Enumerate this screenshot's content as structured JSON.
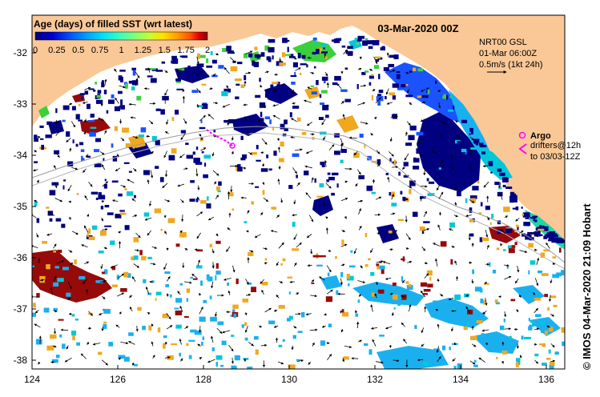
{
  "map": {
    "date_title": "03-Mar-2020 00Z",
    "legend_title": "Age (days) of filled SST (wrt latest)",
    "legend_ticks": [
      "0",
      "0.25",
      "0.5",
      "0.75",
      "1",
      "1.25",
      "1.5",
      "1.75",
      "2"
    ],
    "legend_colors": [
      "#00007f",
      "#0000d0",
      "#0050ff",
      "#00a0ff",
      "#00e4f8",
      "#40ffb8",
      "#80ff78",
      "#c0ff38",
      "#ffe000",
      "#ffa000",
      "#ff5000",
      "#e00000",
      "#8b0000"
    ],
    "y_ticks": [
      "-32",
      "-33",
      "-34",
      "-35",
      "-36",
      "-37",
      "-38"
    ],
    "x_ticks": [
      "124",
      "126",
      "128",
      "130",
      "132",
      "134",
      "136"
    ],
    "current_label_1": "NRT00 GSL",
    "current_label_2": "01-Mar 06:00Z",
    "current_label_3": "0.5m/s (1kt 24h)",
    "argo_label": "Argo",
    "drifter_label_1": "drifters@12h",
    "drifter_label_2": "to 03/03-12Z",
    "credit": "© IMOS 04-Mar-2020 21:09 Hobart",
    "colors": {
      "land": "#fac896",
      "sea": "#ffffff",
      "deep_blue": "#000080",
      "mid_blue": "#1a53ff",
      "light_blue": "#1ab0f0",
      "cyan": "#00c8d8",
      "teal": "#22d6a8",
      "green": "#3ccf3c",
      "orange": "#f0a81e",
      "dark_red": "#960a0a",
      "argo_magenta": "#ff00ff"
    }
  }
}
